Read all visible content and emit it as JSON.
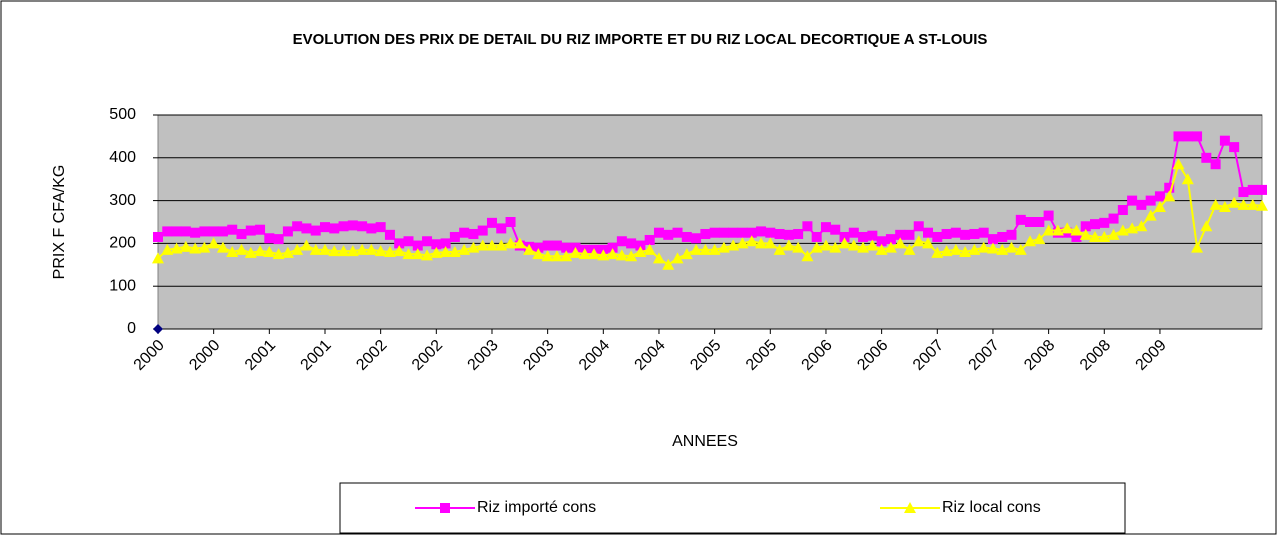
{
  "chart_data": {
    "type": "line",
    "title": "EVOLUTION DES PRIX DE DETAIL DU RIZ IMPORTE ET DU RIZ LOCAL DECORTIQUE A ST-LOUIS",
    "x_label": "ANNEES",
    "y_label": "PRIX  F CFA/KG",
    "categories": [
      "2000",
      null,
      null,
      null,
      null,
      null,
      "2000",
      null,
      null,
      null,
      null,
      null,
      "2001",
      null,
      null,
      null,
      null,
      null,
      "2001",
      null,
      null,
      null,
      null,
      null,
      "2002",
      null,
      null,
      null,
      null,
      null,
      "2002",
      null,
      null,
      null,
      null,
      null,
      "2003",
      null,
      null,
      null,
      null,
      null,
      "2003",
      null,
      null,
      null,
      null,
      null,
      "2004",
      null,
      null,
      null,
      null,
      null,
      "2004",
      null,
      null,
      null,
      null,
      null,
      "2005",
      null,
      null,
      null,
      null,
      null,
      "2005",
      null,
      null,
      null,
      null,
      null,
      "2006",
      null,
      null,
      null,
      null,
      null,
      "2006",
      null,
      null,
      null,
      null,
      null,
      "2007",
      null,
      null,
      null,
      null,
      null,
      "2007",
      null,
      null,
      null,
      null,
      null,
      "2008",
      null,
      null,
      null,
      null,
      null,
      "2008",
      null,
      null,
      null,
      null,
      null,
      "2009",
      null,
      null,
      null,
      null,
      null,
      null,
      null,
      null,
      null,
      null,
      null
    ],
    "series": [
      {
        "name": "Riz importé cons",
        "color": "#ff00ff",
        "marker": "square",
        "values": [
          215,
          228,
          228,
          228,
          225,
          228,
          228,
          228,
          232,
          222,
          230,
          232,
          212,
          210,
          228,
          240,
          235,
          230,
          238,
          235,
          240,
          242,
          240,
          235,
          238,
          220,
          200,
          205,
          195,
          205,
          198,
          200,
          215,
          225,
          222,
          230,
          248,
          235,
          250,
          195,
          192,
          190,
          195,
          195,
          190,
          190,
          185,
          185,
          185,
          190,
          205,
          200,
          195,
          208,
          225,
          220,
          225,
          215,
          212,
          222,
          225,
          225,
          225,
          225,
          225,
          228,
          225,
          222,
          220,
          222,
          240,
          215,
          238,
          232,
          215,
          225,
          215,
          218,
          205,
          210,
          220,
          220,
          240,
          225,
          215,
          222,
          225,
          220,
          222,
          225,
          210,
          215,
          220,
          255,
          250,
          250,
          265,
          225,
          225,
          215,
          240,
          245,
          248,
          258,
          278,
          300,
          290,
          300,
          310,
          330,
          450,
          450,
          450,
          400,
          385,
          440,
          425,
          320,
          325,
          325
        ]
      },
      {
        "name": "Riz local cons",
        "color": "#ffff00",
        "marker": "triangle",
        "values": [
          165,
          185,
          188,
          192,
          188,
          190,
          200,
          190,
          180,
          185,
          178,
          182,
          180,
          175,
          178,
          185,
          195,
          185,
          185,
          182,
          182,
          182,
          185,
          185,
          182,
          180,
          182,
          175,
          175,
          172,
          178,
          180,
          180,
          185,
          190,
          195,
          195,
          195,
          200,
          200,
          185,
          175,
          170,
          170,
          170,
          178,
          175,
          175,
          172,
          175,
          172,
          170,
          180,
          185,
          165,
          150,
          165,
          175,
          185,
          185,
          185,
          190,
          195,
          200,
          205,
          200,
          200,
          185,
          195,
          190,
          170,
          190,
          195,
          190,
          200,
          195,
          190,
          195,
          185,
          190,
          200,
          185,
          205,
          200,
          178,
          182,
          185,
          180,
          185,
          190,
          188,
          185,
          190,
          185,
          205,
          210,
          230,
          230,
          235,
          230,
          220,
          215,
          215,
          220,
          230,
          235,
          240,
          265,
          285,
          310,
          385,
          350,
          190,
          240,
          290,
          285,
          295,
          290,
          290,
          288
        ]
      },
      {
        "color": "#000080",
        "marker": "diamond",
        "values": [
          0,
          null,
          null,
          null,
          null,
          null,
          null,
          null,
          null,
          null,
          null,
          null,
          null,
          null,
          null,
          null,
          null,
          null,
          null,
          null,
          null,
          null,
          null,
          null,
          null,
          null,
          null,
          null,
          null,
          null,
          null,
          null,
          null,
          null,
          null,
          null,
          null,
          null,
          null,
          null,
          null,
          null,
          null,
          null,
          null,
          null,
          null,
          null,
          null,
          null,
          null,
          null,
          null,
          null,
          null,
          null,
          null,
          null,
          null,
          null,
          null,
          null,
          null,
          null,
          null,
          null,
          null,
          null,
          null,
          null,
          null,
          null,
          null,
          null,
          null,
          null,
          null,
          null,
          null,
          null,
          null,
          null,
          null,
          null,
          null,
          null,
          null,
          null,
          null,
          null,
          null,
          null,
          null,
          null,
          null,
          null,
          null,
          null,
          null,
          null,
          null,
          null,
          null,
          null,
          null,
          null,
          null,
          null,
          null,
          null,
          null,
          null,
          null,
          null,
          null,
          null,
          null,
          null,
          null,
          null
        ]
      }
    ],
    "ylim": [
      0,
      500
    ],
    "yticks": [
      0,
      100,
      200,
      300,
      400,
      500
    ],
    "grid": true,
    "legend": "bottom",
    "plot_background": "#c0c0c0"
  }
}
